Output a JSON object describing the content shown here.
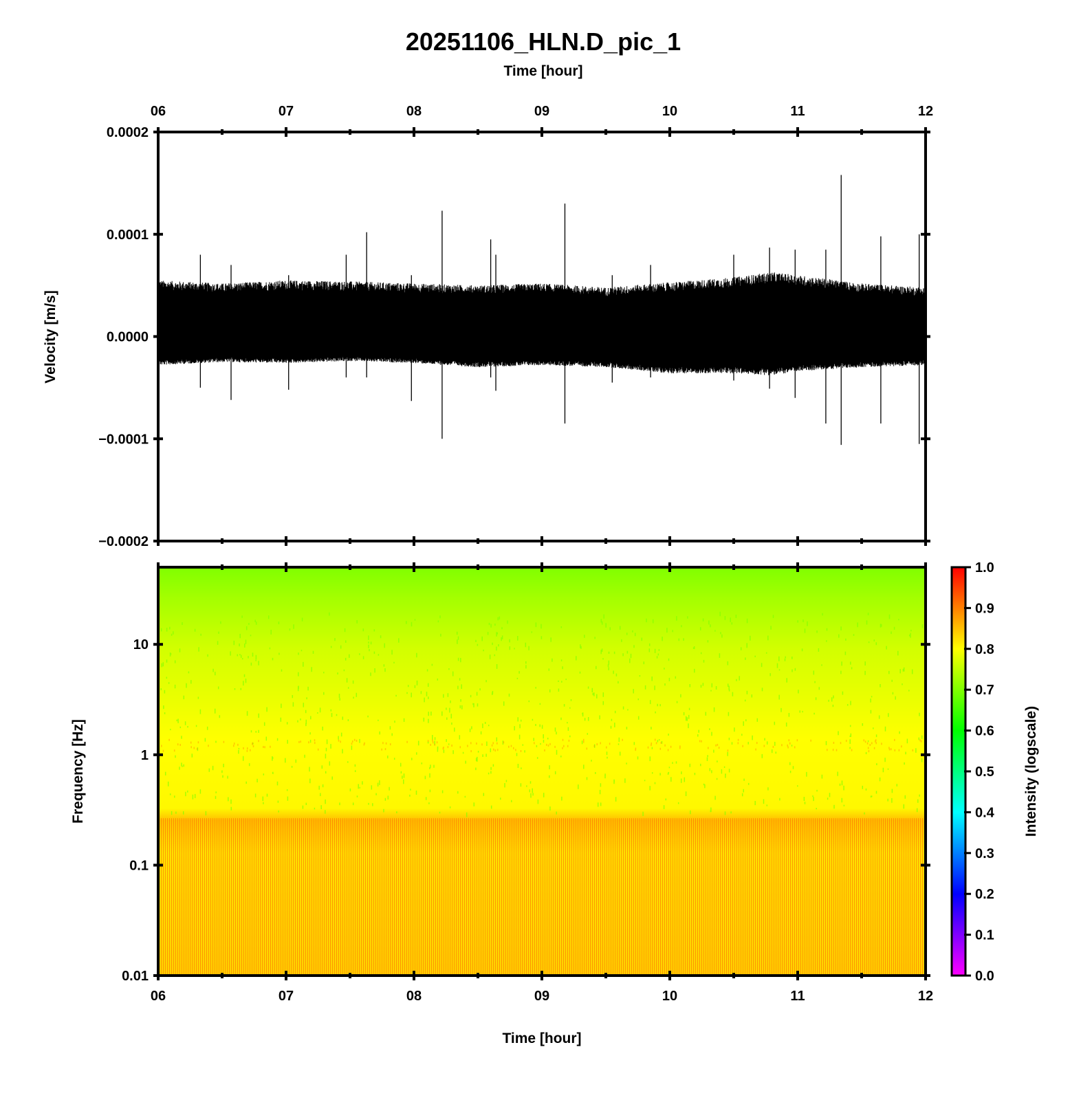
{
  "chart_data": [
    {
      "type": "line",
      "title": "20251106_HLN.D_pic_1",
      "top_xlabel": "Time [hour]",
      "ylabel": "Velocity [m/s]",
      "x_tick_labels": [
        "06",
        "07",
        "08",
        "09",
        "10",
        "11",
        "12"
      ],
      "xlim": [
        6,
        12
      ],
      "ylim": [
        -0.0002,
        0.0002
      ],
      "y_ticks": [
        {
          "value": 0.0002,
          "label": "0.0002"
        },
        {
          "value": 0.0001,
          "label": "0.0001"
        },
        {
          "value": 0.0,
          "label": "0.0000"
        },
        {
          "value": -0.0001,
          "label": "−0.0001"
        },
        {
          "value": -0.0002,
          "label": "−0.0002"
        }
      ],
      "series": [
        {
          "trace_color": "#000000",
          "envelope": {
            "x": [
              6.0,
              6.5,
              7.0,
              7.5,
              8.0,
              8.5,
              9.0,
              9.5,
              10.0,
              10.5,
              10.8,
              11.0,
              11.5,
              12.0
            ],
            "upper": [
              5.5e-05,
              5.2e-05,
              5.5e-05,
              5.4e-05,
              5.2e-05,
              5e-05,
              5.2e-05,
              4.8e-05,
              5.3e-05,
              5.8e-05,
              6.3e-05,
              6e-05,
              5.2e-05,
              4.8e-05
            ],
            "lower": [
              -2.8e-05,
              -2.5e-05,
              -2.6e-05,
              -2.4e-05,
              -2.6e-05,
              -3e-05,
              -2.8e-05,
              -3e-05,
              -3.6e-05,
              -3.6e-05,
              -3.8e-05,
              -3.4e-05,
              -3e-05,
              -2.8e-05
            ]
          },
          "spikes": [
            {
              "x": 6.33,
              "max": 8e-05,
              "min": -5e-05
            },
            {
              "x": 6.57,
              "max": 7e-05,
              "min": -6.2e-05
            },
            {
              "x": 7.02,
              "max": 6e-05,
              "min": -5.2e-05
            },
            {
              "x": 7.47,
              "max": 8e-05,
              "min": -4e-05
            },
            {
              "x": 7.63,
              "max": 0.000102,
              "min": -4e-05
            },
            {
              "x": 7.98,
              "max": 6e-05,
              "min": -6.3e-05
            },
            {
              "x": 8.22,
              "max": 0.000123,
              "min": -0.0001
            },
            {
              "x": 8.6,
              "max": 9.5e-05,
              "min": -4e-05
            },
            {
              "x": 8.64,
              "max": 8e-05,
              "min": -5.3e-05
            },
            {
              "x": 9.18,
              "max": 0.00013,
              "min": -8.5e-05
            },
            {
              "x": 9.55,
              "max": 6e-05,
              "min": -4.5e-05
            },
            {
              "x": 9.85,
              "max": 7e-05,
              "min": -4e-05
            },
            {
              "x": 10.5,
              "max": 8e-05,
              "min": -4.3e-05
            },
            {
              "x": 10.78,
              "max": 8.7e-05,
              "min": -5.1e-05
            },
            {
              "x": 10.98,
              "max": 8.5e-05,
              "min": -6e-05
            },
            {
              "x": 11.22,
              "max": 8.5e-05,
              "min": -8.5e-05
            },
            {
              "x": 11.34,
              "max": 0.000158,
              "min": -0.000106
            },
            {
              "x": 11.65,
              "max": 9.8e-05,
              "min": -8.5e-05
            },
            {
              "x": 11.95,
              "max": 0.0001,
              "min": -0.000105
            }
          ]
        }
      ]
    },
    {
      "type": "heatmap",
      "xlabel": "Time [hour]",
      "ylabel": "Frequency [Hz]",
      "colorbar_label": "Intensity (logscale)",
      "x_tick_labels": [
        "06",
        "07",
        "08",
        "09",
        "10",
        "11",
        "12"
      ],
      "xlim": [
        6,
        12
      ],
      "y_scale": "log",
      "ylim": [
        0.01,
        50
      ],
      "y_ticks": [
        {
          "value": 10,
          "label": "10"
        },
        {
          "value": 1,
          "label": "1"
        },
        {
          "value": 0.1,
          "label": "0.1"
        },
        {
          "value": 0.01,
          "label": "0.01"
        }
      ],
      "colorbar_ticks": [
        "0.0",
        "0.1",
        "0.2",
        "0.3",
        "0.4",
        "0.5",
        "0.6",
        "0.7",
        "0.8",
        "0.9",
        "1.0"
      ],
      "colormap": [
        "#ff00ff",
        "#8000ff",
        "#0000ff",
        "#0080ff",
        "#00ffff",
        "#00ff80",
        "#00ff00",
        "#80ff00",
        "#ffff00",
        "#ff8000",
        "#ff0000"
      ],
      "intensity_profile": [
        {
          "frequency": 50,
          "intensity": 0.7
        },
        {
          "frequency": 20,
          "intensity": 0.74
        },
        {
          "frequency": 10,
          "intensity": 0.77
        },
        {
          "frequency": 3,
          "intensity": 0.79
        },
        {
          "frequency": 1.3,
          "intensity": 0.81
        },
        {
          "frequency": 1,
          "intensity": 0.8
        },
        {
          "frequency": 0.3,
          "intensity": 0.8
        },
        {
          "frequency": 0.2,
          "intensity": 0.86
        },
        {
          "frequency": 0.1,
          "intensity": 0.82
        },
        {
          "frequency": 0.01,
          "intensity": 0.84
        }
      ]
    }
  ]
}
